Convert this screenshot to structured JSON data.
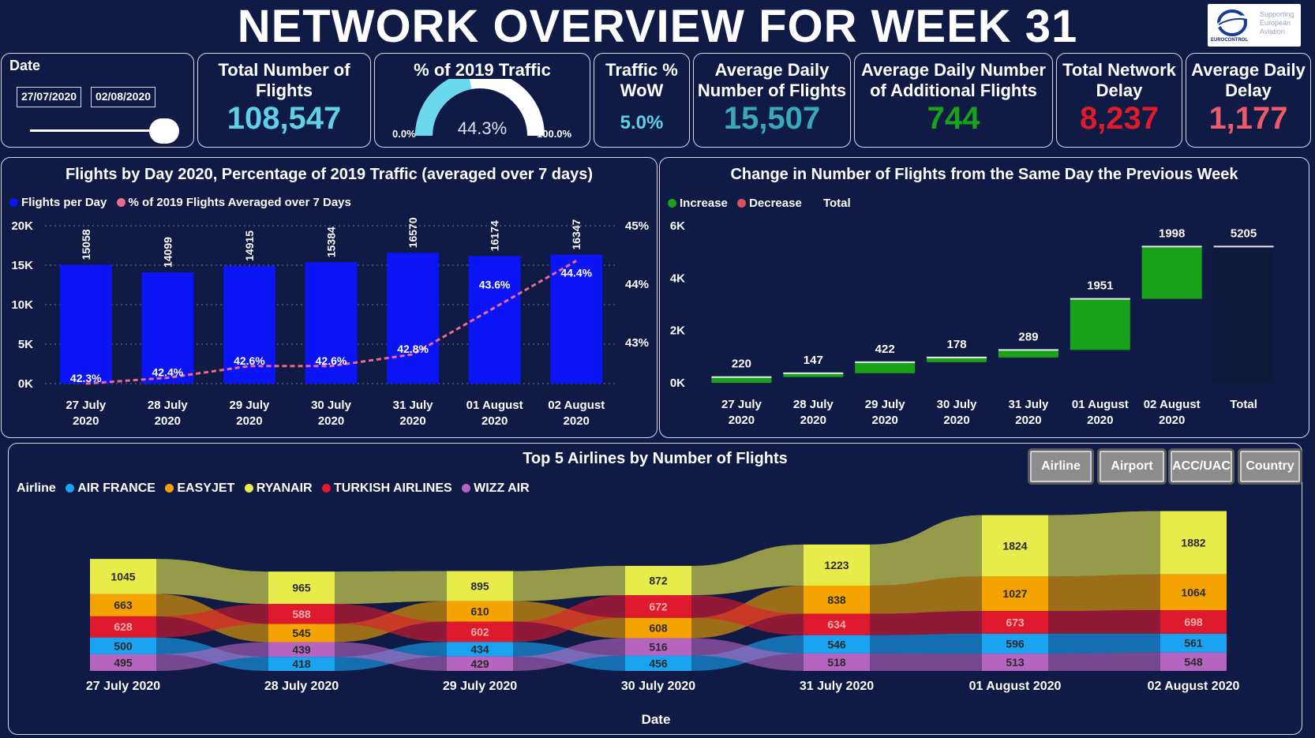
{
  "header": {
    "title": "NETWORK OVERVIEW FOR WEEK 31"
  },
  "logo": {
    "tagline": [
      "Supporting",
      "European",
      "Aviation"
    ],
    "name": "EUROCONTROL"
  },
  "date_filter": {
    "label": "Date",
    "start": "27/07/2020",
    "end": "02/08/2020"
  },
  "kpis": {
    "total_flights": {
      "label": "Total Number of Flights",
      "value": "108,547",
      "color": "#5fd0e6"
    },
    "pct_2019": {
      "label": "% of 2019 Traffic",
      "value": "44.3%",
      "min": "0.0%",
      "max": "100.0%",
      "fraction": 0.443
    },
    "wow": {
      "label": "Traffic % WoW",
      "value": "5.0%"
    },
    "avg_daily": {
      "label": "Average Daily Number of Flights",
      "value": "15,507"
    },
    "avg_additional": {
      "label": "Average Daily Number of Additional Flights",
      "value": "744",
      "color": "#18a21a"
    },
    "total_delay": {
      "label": "Total Network Delay",
      "value": "8,237",
      "color": "#e11a2a"
    },
    "avg_delay": {
      "label": "Average Daily Delay",
      "value": "1,177",
      "color": "#ee5a6a"
    }
  },
  "panel1": {
    "title": "Flights by Day 2020, Percentage of 2019 Traffic (averaged over 7 days)"
  },
  "panel2": {
    "title": "Change in Number of Flights from the Same Day the Previous Week"
  },
  "panel3": {
    "title": "Top 5 Airlines by Number of Flights"
  },
  "buttons": {
    "airline": "Airline",
    "airport": "Airport",
    "acc": "ACC/UAC",
    "country": "Country"
  },
  "chart_data": [
    {
      "type": "bar",
      "title": "Flights by Day 2020, Percentage of 2019 Traffic (averaged over 7 days)",
      "categories": [
        "27 July 2020",
        "28 July 2020",
        "29 July 2020",
        "30 July 2020",
        "31 July 2020",
        "01 August 2020",
        "02 August 2020"
      ],
      "series": [
        {
          "name": "Flights per Day",
          "type": "bar",
          "values": [
            15058,
            14099,
            14915,
            15384,
            16570,
            16174,
            16347
          ],
          "color": "#0a14f5"
        },
        {
          "name": "% of 2019 Flights Averaged over 7 Days",
          "type": "line",
          "values": [
            42.3,
            42.4,
            42.6,
            42.6,
            42.8,
            43.6,
            44.4
          ],
          "labels": [
            "42.3%",
            "42.4%",
            "42.6%",
            "42.6%",
            "42.8%",
            "43.6%",
            "44.4%"
          ],
          "color": "#f06a8a"
        }
      ],
      "y_ticks": [
        "0K",
        "5K",
        "10K",
        "15K",
        "20K"
      ],
      "y2_ticks": [
        "43%",
        "44%",
        "45%"
      ],
      "ylim": [
        0,
        20000
      ],
      "y2lim": [
        42.3,
        45
      ],
      "grid": true,
      "legend": "top-left"
    },
    {
      "type": "bar",
      "subtype": "waterfall",
      "title": "Change in Number of Flights from the Same Day the Previous Week",
      "categories": [
        "27 July 2020",
        "28 July 2020",
        "29 July 2020",
        "30 July 2020",
        "31 July 2020",
        "01 August 2020",
        "02 August 2020",
        "Total"
      ],
      "values": [
        220,
        147,
        422,
        178,
        289,
        1951,
        1998,
        5205
      ],
      "legend_entries": [
        {
          "name": "Increase",
          "color": "#18a21a"
        },
        {
          "name": "Decrease",
          "color": "#e0505e"
        },
        {
          "name": "Total",
          "color": "#0f1a45"
        }
      ],
      "total_color": "#0e1a3a",
      "y_ticks": [
        "0K",
        "2K",
        "4K",
        "6K"
      ],
      "ylim": [
        0,
        6000
      ],
      "legend": "top-left"
    },
    {
      "type": "area",
      "subtype": "ribbon",
      "title": "Top 5 Airlines by Number of Flights",
      "xlabel": "Date",
      "legend_title": "Airline",
      "categories": [
        "27 July 2020",
        "28 July 2020",
        "29 July 2020",
        "30 July 2020",
        "31 July 2020",
        "01 August 2020",
        "02 August 2020"
      ],
      "series": [
        {
          "name": "AIR FRANCE",
          "color": "#1aa3f0",
          "values": [
            500,
            418,
            434,
            456,
            546,
            596,
            561
          ]
        },
        {
          "name": "EASYJET",
          "color": "#f5a300",
          "values": [
            663,
            545,
            610,
            608,
            838,
            1027,
            1064
          ]
        },
        {
          "name": "RYANAIR",
          "color": "#e8ec4a",
          "values": [
            1045,
            965,
            895,
            872,
            1223,
            1824,
            1882
          ]
        },
        {
          "name": "TURKISH AIRLINES",
          "color": "#e01a2e",
          "values": [
            628,
            588,
            602,
            672,
            634,
            673,
            698
          ]
        },
        {
          "name": "WIZZ AIR",
          "color": "#b565c0",
          "values": [
            495,
            439,
            429,
            516,
            518,
            513,
            548
          ]
        }
      ],
      "legend": "top-left"
    }
  ]
}
